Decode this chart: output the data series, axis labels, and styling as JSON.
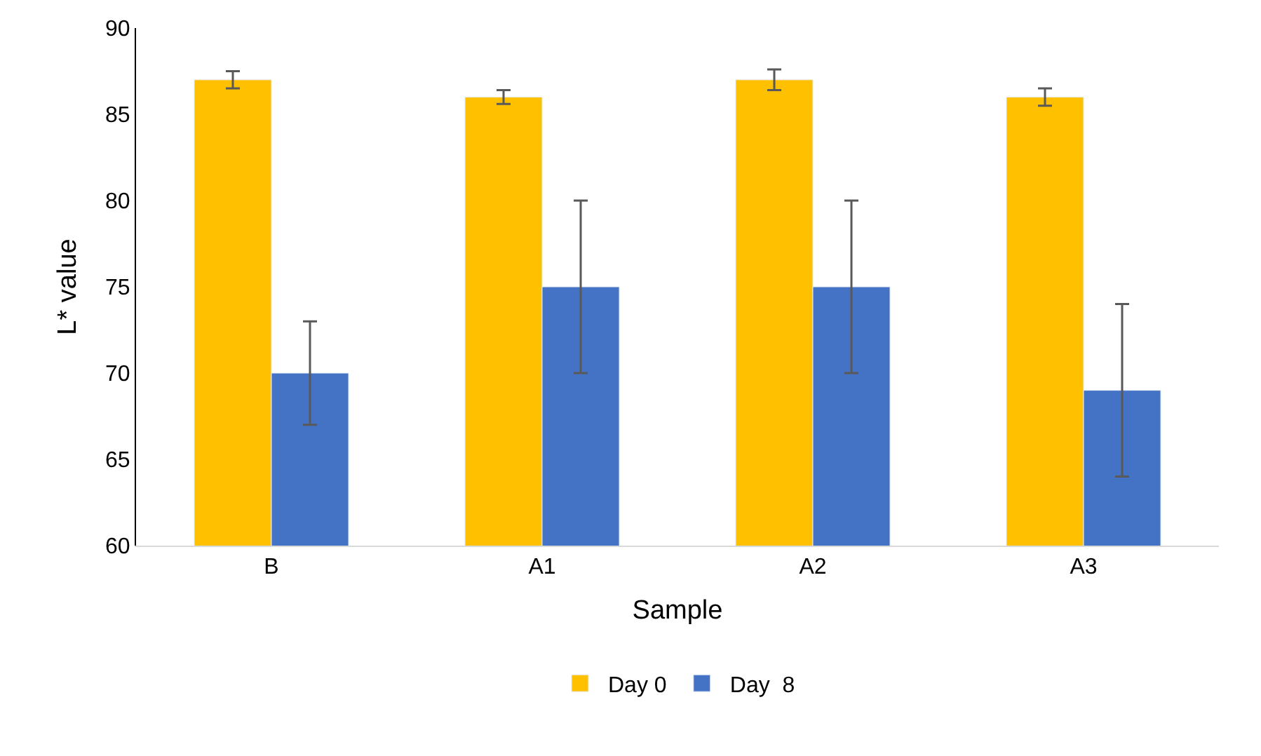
{
  "chart_data": {
    "type": "bar",
    "xlabel": "Sample",
    "ylabel": "L* value",
    "categories": [
      "B",
      "A1",
      "A2",
      "A3"
    ],
    "series": [
      {
        "name": "Day 0",
        "color": "#ffc000",
        "values": [
          87,
          86,
          87,
          86
        ],
        "errors": [
          0.5,
          0.4,
          0.6,
          0.5
        ]
      },
      {
        "name": "Day  8",
        "color": "#4472c4",
        "values": [
          70,
          75,
          75,
          69
        ],
        "errors": [
          3,
          5,
          5,
          5
        ]
      }
    ],
    "ylim": [
      60,
      90
    ],
    "yticks": [
      60,
      65,
      70,
      75,
      80,
      85,
      90
    ],
    "legend": "bottom"
  }
}
